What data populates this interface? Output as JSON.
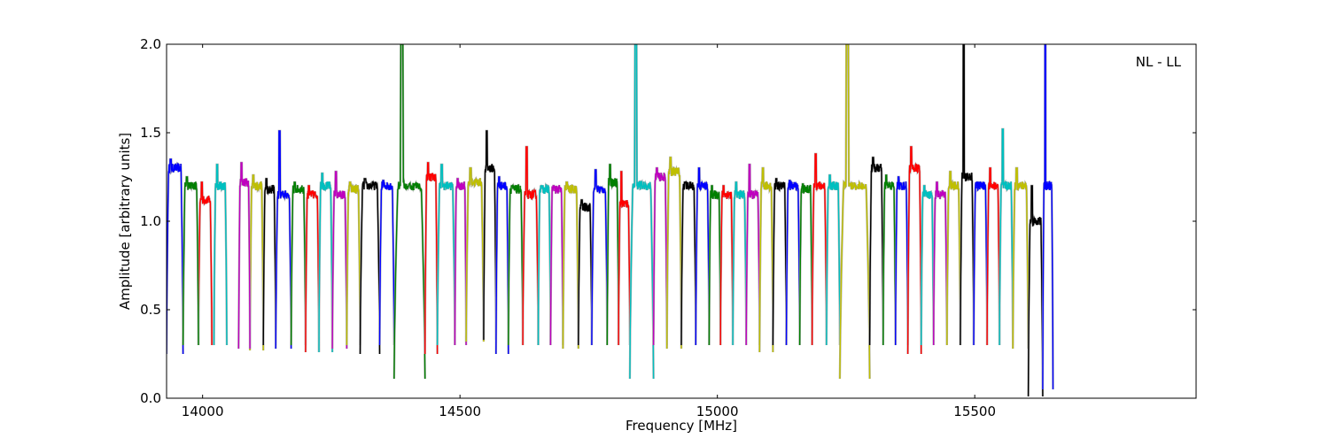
{
  "chart_data": {
    "type": "line",
    "annotation": "NL - LL",
    "xlabel": "Frequency [MHz]",
    "ylabel": "Amplitude [arbitrary units]",
    "xlim": [
      13930,
      15930
    ],
    "ylim": [
      0.0,
      2.0
    ],
    "xticks": [
      14000,
      14500,
      15000,
      15500
    ],
    "xtick_labels": [
      "14000",
      "14500",
      "15000",
      "15500"
    ],
    "yticks": [
      0.0,
      0.5,
      1.0,
      1.5,
      2.0
    ],
    "ytick_labels": [
      "0.0",
      "0.5",
      "1.0",
      "1.5",
      "2.0"
    ],
    "grid": false,
    "legend": "none",
    "background_trace_color": "#b0b0b0",
    "color_cycle": [
      "#0000ff",
      "#ff0000",
      "#00bfbf",
      "#bfbf00",
      "#007f00",
      "#bf00bf",
      "#000000"
    ],
    "series": [
      {
        "color": "#0000ff",
        "start": 13930,
        "end": 13962,
        "min": 0.25,
        "plateau": 1.3,
        "peak": 1.35
      },
      {
        "color": "#ff0000",
        "start": 13992,
        "end": 14018,
        "min": 0.3,
        "plateau": 1.12,
        "peak": 1.22
      },
      {
        "color": "#00bfbf",
        "start": 14022,
        "end": 14047,
        "min": 0.3,
        "plateau": 1.2,
        "peak": 1.32
      },
      {
        "color": "#bfbf00",
        "start": 14092,
        "end": 14118,
        "min": 0.27,
        "plateau": 1.2,
        "peak": 1.26
      },
      {
        "color": "#007f00",
        "start": 13962,
        "end": 13992,
        "min": 0.3,
        "plateau": 1.2,
        "peak": 1.25
      },
      {
        "color": "#bf00bf",
        "start": 14070,
        "end": 14092,
        "min": 0.28,
        "plateau": 1.22,
        "peak": 1.33
      },
      {
        "color": "#000000",
        "start": 14118,
        "end": 14142,
        "min": 0.3,
        "plateau": 1.18,
        "peak": 1.24
      },
      {
        "color": "#0000ff",
        "start": 14142,
        "end": 14172,
        "min": 0.28,
        "plateau": 1.15,
        "peak": 1.51
      },
      {
        "color": "#007f00",
        "start": 14172,
        "end": 14200,
        "min": 0.3,
        "plateau": 1.18,
        "peak": 1.22
      },
      {
        "color": "#ff0000",
        "start": 14200,
        "end": 14226,
        "min": 0.26,
        "plateau": 1.15,
        "peak": 1.2
      },
      {
        "color": "#00bfbf",
        "start": 14226,
        "end": 14252,
        "min": 0.26,
        "plateau": 1.2,
        "peak": 1.27
      },
      {
        "color": "#bf00bf",
        "start": 14252,
        "end": 14280,
        "min": 0.28,
        "plateau": 1.15,
        "peak": 1.28
      },
      {
        "color": "#bfbf00",
        "start": 14280,
        "end": 14306,
        "min": 0.3,
        "plateau": 1.18,
        "peak": 1.22
      },
      {
        "color": "#000000",
        "start": 14306,
        "end": 14344,
        "min": 0.25,
        "plateau": 1.2,
        "peak": 1.24
      },
      {
        "color": "#0000ff",
        "start": 14344,
        "end": 14372,
        "min": 0.3,
        "plateau": 1.2,
        "peak": 1.23
      },
      {
        "color": "#007f00",
        "start": 14372,
        "end": 14432,
        "min": 0.11,
        "plateau": 1.2,
        "peak": 2.0
      },
      {
        "color": "#ff0000",
        "start": 14432,
        "end": 14456,
        "min": 0.25,
        "plateau": 1.25,
        "peak": 1.33
      },
      {
        "color": "#00bfbf",
        "start": 14456,
        "end": 14490,
        "min": 0.3,
        "plateau": 1.2,
        "peak": 1.32
      },
      {
        "color": "#bf00bf",
        "start": 14490,
        "end": 14512,
        "min": 0.3,
        "plateau": 1.2,
        "peak": 1.24
      },
      {
        "color": "#bfbf00",
        "start": 14512,
        "end": 14546,
        "min": 0.32,
        "plateau": 1.22,
        "peak": 1.3
      },
      {
        "color": "#000000",
        "start": 14546,
        "end": 14570,
        "min": 0.33,
        "plateau": 1.3,
        "peak": 1.51
      },
      {
        "color": "#0000ff",
        "start": 14570,
        "end": 14594,
        "min": 0.25,
        "plateau": 1.2,
        "peak": 1.25
      },
      {
        "color": "#007f00",
        "start": 14594,
        "end": 14622,
        "min": 0.3,
        "plateau": 1.18,
        "peak": 1.2
      },
      {
        "color": "#ff0000",
        "start": 14622,
        "end": 14652,
        "min": 0.3,
        "plateau": 1.15,
        "peak": 1.42
      },
      {
        "color": "#00bfbf",
        "start": 14652,
        "end": 14676,
        "min": 0.3,
        "plateau": 1.18,
        "peak": 1.2
      },
      {
        "color": "#bf00bf",
        "start": 14676,
        "end": 14700,
        "min": 0.3,
        "plateau": 1.18,
        "peak": 1.2
      },
      {
        "color": "#bfbf00",
        "start": 14700,
        "end": 14730,
        "min": 0.28,
        "plateau": 1.18,
        "peak": 1.22
      },
      {
        "color": "#000000",
        "start": 14730,
        "end": 14756,
        "min": 0.3,
        "plateau": 1.08,
        "peak": 1.12
      },
      {
        "color": "#0000ff",
        "start": 14756,
        "end": 14786,
        "min": 0.3,
        "plateau": 1.18,
        "peak": 1.29
      },
      {
        "color": "#007f00",
        "start": 14786,
        "end": 14808,
        "min": 0.3,
        "plateau": 1.22,
        "peak": 1.32
      },
      {
        "color": "#ff0000",
        "start": 14808,
        "end": 14830,
        "min": 0.3,
        "plateau": 1.1,
        "peak": 1.28
      },
      {
        "color": "#00bfbf",
        "start": 14830,
        "end": 14876,
        "min": 0.11,
        "plateau": 1.2,
        "peak": 2.0
      },
      {
        "color": "#bf00bf",
        "start": 14876,
        "end": 14902,
        "min": 0.3,
        "plateau": 1.25,
        "peak": 1.3
      },
      {
        "color": "#bfbf00",
        "start": 14902,
        "end": 14930,
        "min": 0.28,
        "plateau": 1.28,
        "peak": 1.36
      },
      {
        "color": "#000000",
        "start": 14930,
        "end": 14958,
        "min": 0.3,
        "plateau": 1.2,
        "peak": 1.22
      },
      {
        "color": "#0000ff",
        "start": 14958,
        "end": 14984,
        "min": 0.3,
        "plateau": 1.2,
        "peak": 1.3
      },
      {
        "color": "#007f00",
        "start": 14984,
        "end": 15006,
        "min": 0.3,
        "plateau": 1.15,
        "peak": 1.2
      },
      {
        "color": "#ff0000",
        "start": 15006,
        "end": 15030,
        "min": 0.3,
        "plateau": 1.15,
        "peak": 1.2
      },
      {
        "color": "#00bfbf",
        "start": 15030,
        "end": 15056,
        "min": 0.3,
        "plateau": 1.15,
        "peak": 1.22
      },
      {
        "color": "#bf00bf",
        "start": 15056,
        "end": 15082,
        "min": 0.3,
        "plateau": 1.15,
        "peak": 1.32
      },
      {
        "color": "#bfbf00",
        "start": 15082,
        "end": 15108,
        "min": 0.26,
        "plateau": 1.2,
        "peak": 1.3
      },
      {
        "color": "#000000",
        "start": 15108,
        "end": 15134,
        "min": 0.3,
        "plateau": 1.2,
        "peak": 1.24
      },
      {
        "color": "#0000ff",
        "start": 15134,
        "end": 15160,
        "min": 0.3,
        "plateau": 1.2,
        "peak": 1.23
      },
      {
        "color": "#007f00",
        "start": 15160,
        "end": 15184,
        "min": 0.3,
        "plateau": 1.18,
        "peak": 1.21
      },
      {
        "color": "#ff0000",
        "start": 15184,
        "end": 15212,
        "min": 0.3,
        "plateau": 1.2,
        "peak": 1.38
      },
      {
        "color": "#00bfbf",
        "start": 15212,
        "end": 15238,
        "min": 0.3,
        "plateau": 1.2,
        "peak": 1.26
      },
      {
        "color": "#bfbf00",
        "start": 15238,
        "end": 15296,
        "min": 0.11,
        "plateau": 1.2,
        "peak": 2.0
      },
      {
        "color": "#000000",
        "start": 15296,
        "end": 15322,
        "min": 0.3,
        "plateau": 1.3,
        "peak": 1.36
      },
      {
        "color": "#007f00",
        "start": 15322,
        "end": 15346,
        "min": 0.3,
        "plateau": 1.2,
        "peak": 1.26
      },
      {
        "color": "#0000ff",
        "start": 15346,
        "end": 15370,
        "min": 0.3,
        "plateau": 1.2,
        "peak": 1.25
      },
      {
        "color": "#ff0000",
        "start": 15370,
        "end": 15396,
        "min": 0.25,
        "plateau": 1.3,
        "peak": 1.42
      },
      {
        "color": "#00bfbf",
        "start": 15396,
        "end": 15420,
        "min": 0.3,
        "plateau": 1.15,
        "peak": 1.2
      },
      {
        "color": "#bf00bf",
        "start": 15420,
        "end": 15446,
        "min": 0.3,
        "plateau": 1.15,
        "peak": 1.22
      },
      {
        "color": "#bfbf00",
        "start": 15446,
        "end": 15472,
        "min": 0.3,
        "plateau": 1.2,
        "peak": 1.28
      },
      {
        "color": "#000000",
        "start": 15472,
        "end": 15498,
        "min": 0.3,
        "plateau": 1.25,
        "peak": 2.0
      },
      {
        "color": "#0000ff",
        "start": 15498,
        "end": 15524,
        "min": 0.3,
        "plateau": 1.2,
        "peak": 1.22
      },
      {
        "color": "#ff0000",
        "start": 15524,
        "end": 15548,
        "min": 0.3,
        "plateau": 1.2,
        "peak": 1.3
      },
      {
        "color": "#00bfbf",
        "start": 15548,
        "end": 15574,
        "min": 0.3,
        "plateau": 1.2,
        "peak": 1.52
      },
      {
        "color": "#bfbf00",
        "start": 15574,
        "end": 15604,
        "min": 0.28,
        "plateau": 1.2,
        "peak": 1.3
      },
      {
        "color": "#000000",
        "start": 15604,
        "end": 15632,
        "min": 0.01,
        "plateau": 1.0,
        "peak": 1.2
      },
      {
        "color": "#0000ff",
        "start": 15632,
        "end": 15652,
        "min": 0.05,
        "plateau": 1.2,
        "peak": 2.0
      }
    ]
  }
}
